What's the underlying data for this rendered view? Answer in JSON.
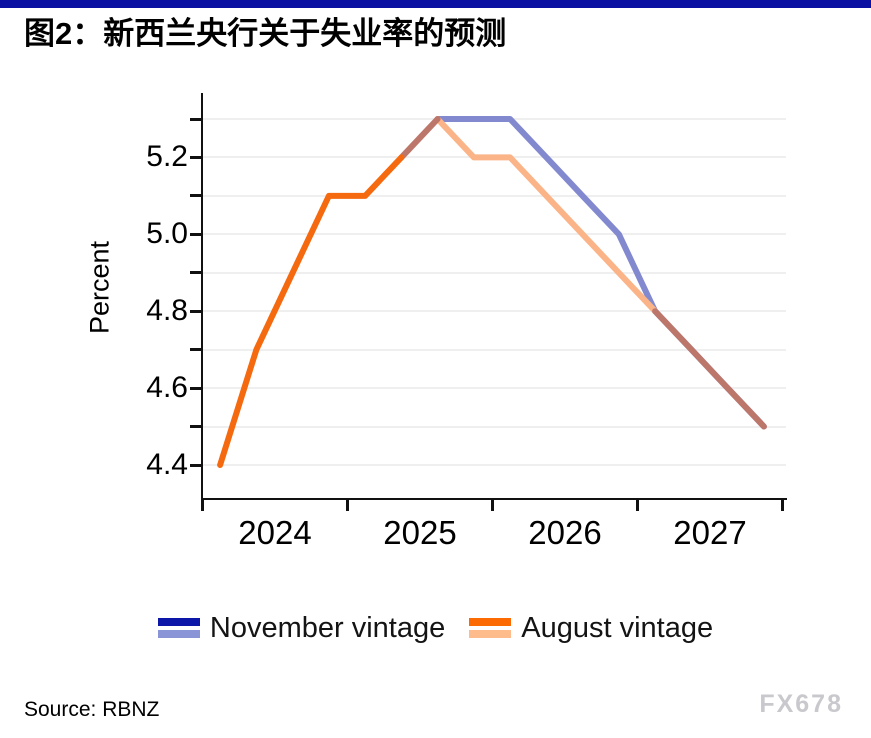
{
  "header": {
    "title": "图2：新西兰央行关于失业率的预测",
    "bar_color": "#0a10a2"
  },
  "chart_data": {
    "type": "line",
    "title": "图2：新西兰央行关于失业率的预测",
    "xlabel": "",
    "ylabel": "Percent",
    "ylim": [
      4.35,
      5.36
    ],
    "grid": "horizontal only, light gray, every 0.1",
    "legend_position": "bottom center",
    "x_tick_years": [
      2024,
      2025,
      2026,
      2027,
      2028
    ],
    "x_tick_labels": [
      "2024",
      "2025",
      "2026",
      "2027"
    ],
    "y_tick_labels": [
      "5.2",
      "5.0",
      "4.8",
      "4.6",
      "4.4"
    ],
    "y_gridline_values": [
      5.3,
      5.2,
      5.1,
      5.0,
      4.9,
      4.8,
      4.7,
      4.6,
      4.5,
      4.4
    ],
    "categories": [
      "2024Q1",
      "2024Q2",
      "2024Q3",
      "2024Q4",
      "2025Q1",
      "2025Q2",
      "2025Q3",
      "2025Q4",
      "2026Q1",
      "2026Q2",
      "2026Q3",
      "2026Q4",
      "2027Q1",
      "2027Q2",
      "2027Q3",
      "2027Q4"
    ],
    "series": [
      {
        "name": "November vintage",
        "color_actual": "#0d17a8",
        "color_forecast": "#8289cf",
        "values": [
          4.4,
          4.7,
          4.9,
          5.1,
          5.1,
          5.2,
          5.3,
          5.3,
          5.3,
          5.2,
          5.1,
          5.0,
          4.8,
          4.7,
          4.6,
          4.5
        ]
      },
      {
        "name": "August vintage",
        "color_actual": "#f5690f",
        "color_forecast": "#fbb488",
        "values": [
          4.4,
          4.7,
          4.9,
          5.1,
          5.1,
          5.2,
          5.3,
          5.2,
          5.2,
          5.1,
          5.0,
          4.9,
          4.8,
          4.7,
          4.6,
          4.5
        ]
      }
    ],
    "overlap_blend_color": "#bd766a",
    "render_segments": [
      {
        "name": "november-forecast",
        "series": 0,
        "from": 6,
        "to": 15,
        "color": "#8289cf"
      },
      {
        "name": "august-forecast",
        "series": 1,
        "from": 6,
        "to": 12,
        "color": "#fbb488"
      },
      {
        "name": "overlap-rise",
        "series": 1,
        "from": 5,
        "to": 6,
        "color": "#bd766a"
      },
      {
        "name": "overlap-tail",
        "series": 1,
        "from": 12,
        "to": 15,
        "color": "#bd766a"
      },
      {
        "name": "shared-history",
        "series": 1,
        "from": 0,
        "to": 5,
        "color": "#f5690f"
      }
    ]
  },
  "legend": {
    "items": [
      {
        "label": "November vintage",
        "swatch_top": "#0d17a8",
        "swatch_bottom": "#8995d6"
      },
      {
        "label": "August vintage",
        "swatch_top": "#fc6a03",
        "swatch_bottom": "#febc8c"
      }
    ]
  },
  "footer": {
    "source": "Source: RBNZ",
    "watermark": "FX678"
  }
}
